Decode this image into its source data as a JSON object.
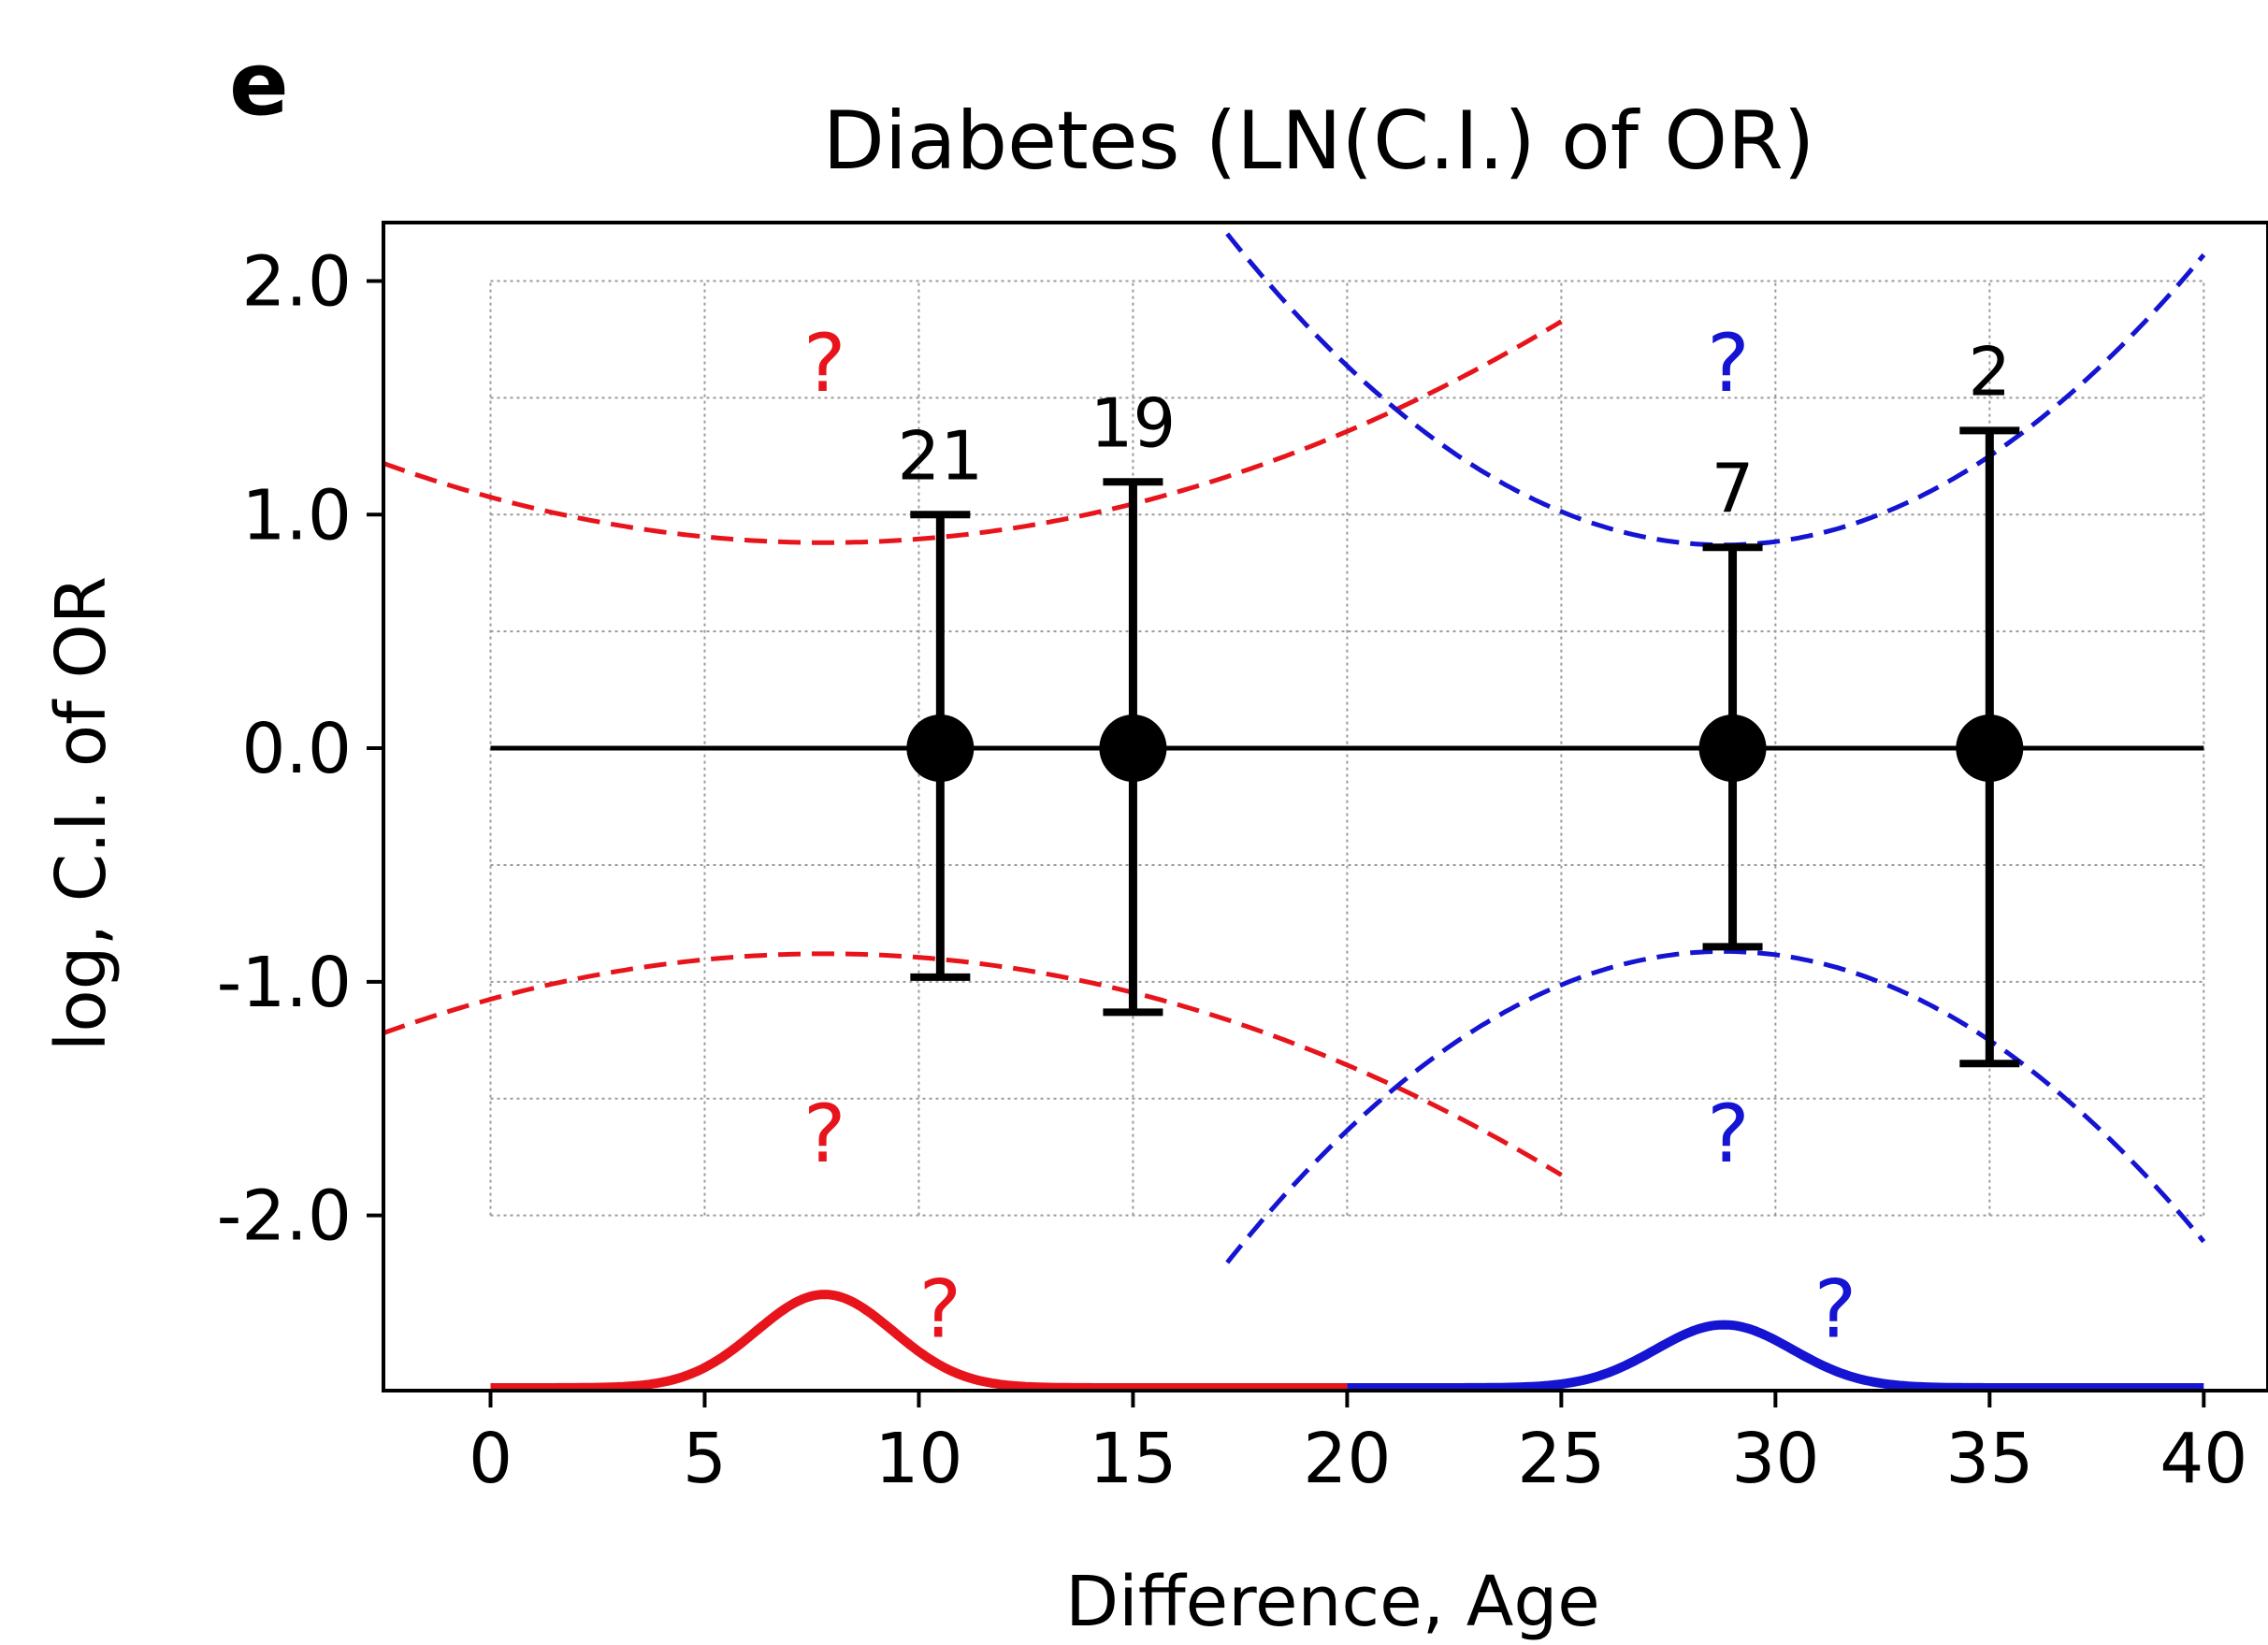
{
  "chart_data": {
    "type": "scatter",
    "panel_label": "e",
    "title": "Diabetes (LN(C.I.) of OR)",
    "xlabel": "Difference, Age",
    "ylabel": "log, C.I. of OR",
    "xlim": [
      -2.5,
      41.5
    ],
    "ylim": [
      -2.75,
      2.25
    ],
    "xticks": [
      0,
      5,
      10,
      15,
      20,
      25,
      30,
      35,
      40
    ],
    "xtick_labels": [
      "0",
      "5",
      "10",
      "15",
      "20",
      "25",
      "30",
      "35",
      "40"
    ],
    "yticks": [
      2.0,
      1.0,
      0.0,
      -1.0,
      -2.0
    ],
    "ytick_labels": [
      "2.0",
      "1.0",
      "0.0",
      "-1.0",
      "-2.0"
    ],
    "grid": true,
    "grid_region": {
      "x": [
        0,
        40
      ],
      "y": [
        -2.0,
        2.0
      ],
      "x_step": 5,
      "y_step": 0.5
    },
    "reference_line": {
      "y": 0,
      "x": [
        0,
        40
      ],
      "color": "#000000"
    },
    "points": [
      {
        "x": 10.5,
        "y": 0.0,
        "ci_low": -0.98,
        "ci_high": 1.0,
        "count": "21"
      },
      {
        "x": 15.0,
        "y": 0.0,
        "ci_low": -1.13,
        "ci_high": 1.14,
        "count": "19"
      },
      {
        "x": 29.0,
        "y": 0.0,
        "ci_low": -0.85,
        "ci_high": 0.86,
        "count": "7"
      },
      {
        "x": 35.0,
        "y": 0.0,
        "ci_low": -1.35,
        "ci_high": 1.36,
        "count": "2"
      }
    ],
    "bound_curves": [
      {
        "color": "#e8141c",
        "center": 7.8,
        "min_abs": 0.88,
        "k": 0.0032,
        "x": [
          -2.5,
          25.0
        ]
      },
      {
        "color": "#1414d2",
        "center": 28.8,
        "min_abs": 0.87,
        "k": 0.0099,
        "x": [
          17.2,
          40.0
        ]
      }
    ],
    "density_curves": [
      {
        "color": "#e8141c",
        "center": 7.8,
        "peak": 0.4,
        "sigma": 1.6,
        "base": -2.75,
        "x": [
          0,
          20
        ]
      },
      {
        "color": "#1414d2",
        "center": 28.8,
        "peak": 0.27,
        "sigma": 1.6,
        "base": -2.75,
        "x": [
          20,
          40
        ]
      }
    ],
    "annotations": [
      {
        "text": "?",
        "x": 7.8,
        "y": 1.65,
        "color": "#e8141c"
      },
      {
        "text": "?",
        "x": 7.8,
        "y": -1.65,
        "color": "#e8141c"
      },
      {
        "text": "?",
        "x": 10.5,
        "y": -2.4,
        "color": "#e8141c"
      },
      {
        "text": "?",
        "x": 28.9,
        "y": 1.65,
        "color": "#1414d2"
      },
      {
        "text": "?",
        "x": 28.9,
        "y": -1.65,
        "color": "#1414d2"
      },
      {
        "text": "?",
        "x": 31.4,
        "y": -2.4,
        "color": "#1414d2"
      }
    ]
  }
}
